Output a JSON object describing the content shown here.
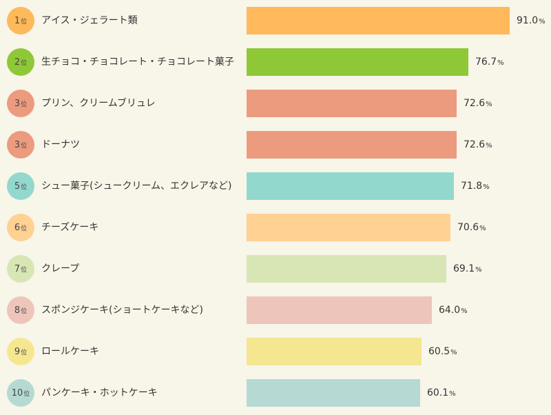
{
  "chart_data": {
    "type": "bar",
    "orientation": "horizontal",
    "title": "",
    "xlabel": "",
    "ylabel": "",
    "value_unit": "%",
    "rank_unit": "位",
    "xlim": [
      0,
      100
    ],
    "grid": false,
    "categories": [
      "アイス・ジェラート類",
      "生チョコ・チョコレート・チョコレート菓子",
      "プリン、クリームブリュレ",
      "ドーナツ",
      "シュー菓子(シュークリーム、エクレアなど)",
      "チーズケーキ",
      "クレープ",
      "スポンジケーキ(ショートケーキなど)",
      "ロールケーキ",
      "パンケーキ・ホットケーキ"
    ],
    "ranks": [
      "1",
      "2",
      "3",
      "3",
      "5",
      "6",
      "7",
      "8",
      "9",
      "10"
    ],
    "values": [
      "91.0",
      "76.7",
      "72.6",
      "72.6",
      "71.8",
      "70.6",
      "69.1",
      "64.0",
      "60.5",
      "60.1"
    ],
    "colors": [
      "#ffb95a",
      "#8fc837",
      "#ec9b7f",
      "#ec9b7f",
      "#92d8cd",
      "#ffd192",
      "#d8e6b6",
      "#eec5ba",
      "#f5e690",
      "#b6dad3"
    ]
  }
}
